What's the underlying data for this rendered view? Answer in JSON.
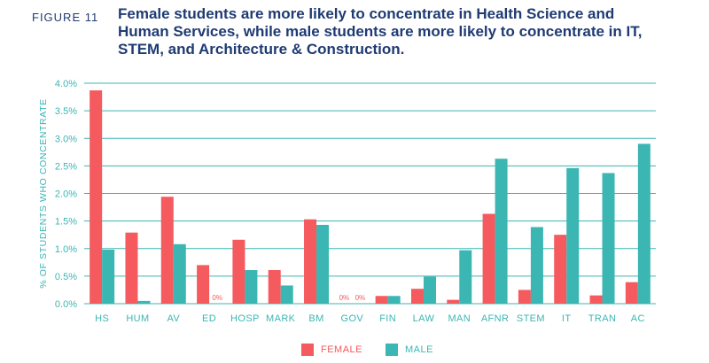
{
  "figure": {
    "label": "FIGURE 11",
    "title": "Female students are more likely to concentrate in Health Science and\nHuman Services, while male students are more likely to concentrate in IT,\nSTEM, and Architecture & Construction."
  },
  "colors": {
    "female": "#f45a5e",
    "male": "#3bb6b3",
    "grid": "#3bb6b3",
    "axis_text": "#3bb6b3",
    "zero_label": "#f45a5e"
  },
  "chart_data": {
    "type": "bar",
    "title": "Female students are more likely to concentrate in Health Science and Human Services, while male students are more likely to concentrate in IT, STEM, and Architecture & Construction.",
    "xlabel": "",
    "ylabel": "% OF STUDENTS WHO CONCENTRATE",
    "ylim": [
      0,
      4.0
    ],
    "yticks": [
      "0.0%",
      "0.5%",
      "1.0%",
      "1.5%",
      "2.0%",
      "2.5%",
      "3.0%",
      "3.5%",
      "4.0%"
    ],
    "grid": true,
    "legend_position": "bottom",
    "categories": [
      "HS",
      "HUM",
      "AV",
      "ED",
      "HOSP",
      "MARK",
      "BM",
      "GOV",
      "FIN",
      "LAW",
      "MAN",
      "AFNR",
      "STEM",
      "IT",
      "TRAN",
      "AC"
    ],
    "series": [
      {
        "name": "FEMALE",
        "values": [
          3.87,
          1.29,
          1.94,
          0.7,
          1.16,
          0.61,
          1.53,
          0.0,
          0.14,
          0.27,
          0.07,
          1.63,
          0.25,
          1.25,
          0.15,
          0.39
        ]
      },
      {
        "name": "MALE",
        "values": [
          0.98,
          0.05,
          1.08,
          0.0,
          0.61,
          0.33,
          1.43,
          0.0,
          0.14,
          0.49,
          0.97,
          2.63,
          1.39,
          2.46,
          2.37,
          2.9
        ]
      }
    ],
    "annotations": [
      {
        "category": "ED",
        "series": "MALE",
        "text": "0%"
      },
      {
        "category": "GOV",
        "series": "FEMALE",
        "text": "0%"
      },
      {
        "category": "GOV",
        "series": "MALE",
        "text": "0%"
      }
    ]
  }
}
